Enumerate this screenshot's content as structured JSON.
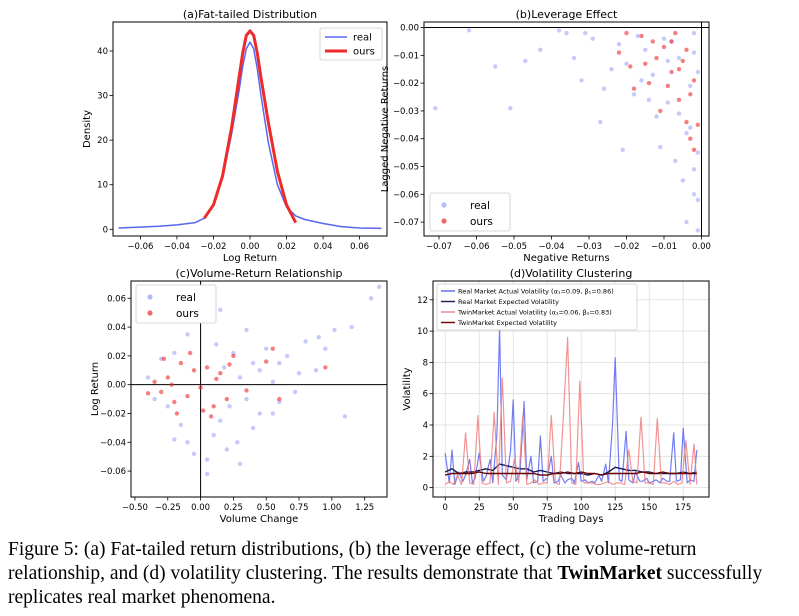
{
  "colors": {
    "real": "#5a66f0",
    "ours": "#ee2a2a",
    "real_dark": "#1a1a55",
    "ours_dark": "#6b0000",
    "ours_light": "#f08080"
  },
  "caption": {
    "prefix": "Figure 5: (a) Fat-tailed return distributions, (b) the leverage effect, (c) the volume-return relationship, and (d) volatility clustering. The results demonstrate that ",
    "bold": "TwinMarket",
    "suffix": " successfully replicates real market phenomena."
  },
  "chart_data": [
    {
      "id": "a",
      "type": "line",
      "title": "(a)Fat-tailed Distribution",
      "xlabel": "Log Return",
      "ylabel": "Density",
      "xlim": [
        -0.075,
        0.075
      ],
      "ylim": [
        -1.5,
        46.5
      ],
      "xticks": [
        -0.06,
        -0.04,
        -0.02,
        0.0,
        0.02,
        0.04,
        0.06
      ],
      "xticklabels": [
        "−0.06",
        "−0.04",
        "−0.02",
        "0.00",
        "0.02",
        "0.04",
        "0.06"
      ],
      "yticks": [
        0,
        10,
        20,
        30,
        40
      ],
      "yticklabels": [
        "0",
        "10",
        "20",
        "30",
        "40"
      ],
      "legend_position": "top-right",
      "series": [
        {
          "name": "real",
          "x": [
            -0.072,
            -0.06,
            -0.05,
            -0.04,
            -0.03,
            -0.025,
            -0.02,
            -0.015,
            -0.01,
            -0.006,
            -0.004,
            -0.002,
            0.0,
            0.002,
            0.004,
            0.006,
            0.01,
            0.015,
            0.02,
            0.025,
            0.03,
            0.04,
            0.05,
            0.06,
            0.072
          ],
          "y": [
            0.3,
            0.5,
            0.7,
            1.0,
            1.5,
            2.5,
            5.5,
            11.5,
            21.5,
            31,
            36.5,
            40.5,
            42,
            40.5,
            36,
            30,
            19.5,
            10,
            5,
            3,
            2.2,
            1.3,
            0.6,
            0.3,
            0.2
          ]
        },
        {
          "name": "ours",
          "x": [
            -0.025,
            -0.02,
            -0.015,
            -0.01,
            -0.006,
            -0.004,
            -0.002,
            0.0,
            0.002,
            0.004,
            0.006,
            0.01,
            0.015,
            0.02,
            0.025
          ],
          "y": [
            2.5,
            5.5,
            12,
            23,
            34,
            39.5,
            43.5,
            44.5,
            43.5,
            39.5,
            34,
            24,
            13,
            5.5,
            1.5
          ]
        }
      ]
    },
    {
      "id": "b",
      "type": "scatter",
      "title": "(b)Leverage Effect",
      "xlabel": "Negative Returns",
      "ylabel": "Lagged Negative Returns",
      "xlim": [
        -0.074,
        0.002
      ],
      "ylim": [
        -0.075,
        0.002
      ],
      "xticks": [
        -0.07,
        -0.06,
        -0.05,
        -0.04,
        -0.03,
        -0.02,
        -0.01,
        0.0
      ],
      "xticklabels": [
        "−0.07",
        "−0.06",
        "−0.05",
        "−0.04",
        "−0.03",
        "−0.02",
        "−0.01",
        "0.00"
      ],
      "yticks": [
        0.0,
        -0.01,
        -0.02,
        -0.03,
        -0.04,
        -0.05,
        -0.06,
        -0.07
      ],
      "yticklabels": [
        "0.00",
        "−0.01",
        "−0.02",
        "−0.03",
        "−0.04",
        "−0.05",
        "−0.06",
        "−0.07"
      ],
      "legend_position": "bottom-left",
      "series": [
        {
          "name": "real",
          "x": [
            -0.071,
            -0.062,
            -0.055,
            -0.051,
            -0.047,
            -0.043,
            -0.038,
            -0.034,
            -0.032,
            -0.029,
            -0.026,
            -0.022,
            -0.02,
            -0.018,
            -0.015,
            -0.013,
            -0.011,
            -0.009,
            -0.008,
            -0.006,
            -0.005,
            -0.004,
            -0.003,
            -0.002,
            -0.001,
            -0.001,
            -0.012,
            -0.007,
            -0.003,
            -0.002,
            -0.017,
            -0.024,
            -0.031,
            -0.002,
            -0.004,
            -0.001,
            -0.036,
            -0.027,
            -0.014,
            -0.01,
            -0.006,
            -0.016,
            -0.021,
            -0.009,
            -0.002,
            -0.001
          ],
          "y": [
            -0.029,
            -0.001,
            -0.014,
            -0.029,
            -0.012,
            -0.008,
            -0.001,
            -0.011,
            -0.019,
            -0.004,
            -0.022,
            -0.006,
            -0.013,
            -0.024,
            -0.008,
            -0.017,
            -0.043,
            -0.027,
            -0.005,
            -0.011,
            -0.055,
            -0.07,
            -0.036,
            -0.002,
            -0.016,
            -0.073,
            -0.032,
            -0.048,
            -0.021,
            -0.009,
            -0.003,
            -0.015,
            -0.002,
            -0.06,
            -0.038,
            -0.045,
            -0.002,
            -0.034,
            -0.026,
            -0.004,
            -0.031,
            -0.019,
            -0.044,
            -0.012,
            -0.051,
            -0.062
          ]
        },
        {
          "name": "ours",
          "x": [
            -0.022,
            -0.019,
            -0.016,
            -0.014,
            -0.012,
            -0.01,
            -0.008,
            -0.007,
            -0.006,
            -0.005,
            -0.004,
            -0.003,
            -0.002,
            -0.001,
            -0.009,
            -0.013,
            -0.018,
            -0.011,
            -0.004,
            -0.003,
            -0.002,
            -0.006,
            -0.015,
            -0.02,
            -0.008
          ],
          "y": [
            -0.009,
            -0.014,
            -0.003,
            -0.02,
            -0.011,
            -0.007,
            -0.016,
            -0.002,
            -0.026,
            -0.012,
            -0.034,
            -0.04,
            -0.019,
            -0.035,
            -0.021,
            -0.005,
            -0.022,
            -0.03,
            -0.008,
            -0.024,
            -0.044,
            -0.015,
            -0.013,
            -0.002,
            -0.005
          ]
        }
      ]
    },
    {
      "id": "c",
      "type": "scatter",
      "title": "(c)Volume-Return Relationship",
      "xlabel": "Volume Change",
      "ylabel": "Log Return",
      "xlim": [
        -0.53,
        1.42
      ],
      "ylim": [
        -0.078,
        0.072
      ],
      "xticks": [
        -0.5,
        -0.25,
        0.0,
        0.25,
        0.5,
        0.75,
        1.0,
        1.25
      ],
      "xticklabels": [
        "−0.50",
        "−0.25",
        "0.00",
        "0.25",
        "0.50",
        "0.75",
        "1.00",
        "1.25"
      ],
      "yticks": [
        0.06,
        0.04,
        0.02,
        0.0,
        -0.02,
        -0.04,
        -0.06
      ],
      "yticklabels": [
        "0.06",
        "0.04",
        "0.02",
        "0.00",
        "−0.02",
        "−0.04",
        "−0.06"
      ],
      "legend_position": "top-left",
      "series": [
        {
          "name": "real",
          "x": [
            1.36,
            1.3,
            1.15,
            1.02,
            0.95,
            0.88,
            0.8,
            0.72,
            0.66,
            0.6,
            0.55,
            0.5,
            0.45,
            0.4,
            0.35,
            0.3,
            0.28,
            0.25,
            0.22,
            0.18,
            0.15,
            0.12,
            0.1,
            0.08,
            0.05,
            -0.05,
            -0.1,
            -0.15,
            -0.2,
            -0.25,
            -0.3,
            -0.35,
            -0.4,
            -0.05,
            0.2,
            0.4,
            0.6,
            0.9,
            1.1,
            0.75,
            0.35,
            0.05,
            -0.2,
            0.15,
            0.3,
            -0.1,
            0.55,
            0.45
          ],
          "y": [
            0.068,
            0.06,
            0.04,
            0.038,
            0.025,
            0.01,
            0.03,
            -0.005,
            0.02,
            0.015,
            -0.02,
            0.025,
            0.01,
            -0.03,
            -0.01,
            0.005,
            -0.04,
            0.022,
            -0.015,
            0.012,
            -0.025,
            0.028,
            -0.035,
            0.045,
            -0.062,
            -0.048,
            0.035,
            -0.028,
            0.022,
            -0.015,
            0.018,
            -0.01,
            0.005,
            0.05,
            -0.045,
            0.015,
            -0.012,
            0.033,
            -0.022,
            0.008,
            0.038,
            -0.052,
            -0.038,
            0.052,
            -0.055,
            -0.04,
            0.002,
            -0.02
          ]
        },
        {
          "name": "ours",
          "x": [
            -0.3,
            -0.25,
            -0.2,
            -0.15,
            -0.1,
            -0.05,
            0.0,
            0.05,
            0.1,
            0.15,
            0.2,
            0.25,
            -0.35,
            -0.4,
            -0.28,
            -0.18,
            -0.08,
            0.02,
            0.12,
            0.22,
            0.35,
            0.5,
            0.55,
            0.95,
            0.6,
            -0.22,
            0.08
          ],
          "y": [
            -0.005,
            0.005,
            -0.012,
            0.015,
            -0.008,
            0.01,
            -0.002,
            0.012,
            -0.015,
            0.008,
            -0.01,
            0.02,
            0.002,
            -0.006,
            0.018,
            -0.02,
            0.022,
            -0.018,
            0.004,
            0.014,
            -0.004,
            0.016,
            0.025,
            0.012,
            -0.01,
            0.0,
            -0.022
          ]
        }
      ]
    },
    {
      "id": "d",
      "type": "line",
      "title": "(d)Volatility Clustering",
      "xlabel": "Trading Days",
      "ylabel": "Volatility",
      "xlim": [
        -9,
        194
      ],
      "ylim": [
        -0.6,
        13.2
      ],
      "xticks": [
        0,
        25,
        50,
        75,
        100,
        125,
        150,
        175
      ],
      "xticklabels": [
        "0",
        "25",
        "50",
        "75",
        "100",
        "125",
        "150",
        "175"
      ],
      "yticks": [
        0,
        2,
        4,
        6,
        8,
        10,
        12
      ],
      "yticklabels": [
        "0",
        "2",
        "4",
        "6",
        "8",
        "10",
        "12"
      ],
      "legend_position": "top-left",
      "series": [
        {
          "name": "Real Market Actual Volatility (α₁=0.09, β₁=0.86)",
          "x": [
            0,
            3,
            5,
            7,
            10,
            13,
            15,
            18,
            20,
            22,
            25,
            28,
            30,
            33,
            35,
            38,
            40,
            42,
            45,
            48,
            50,
            52,
            55,
            58,
            60,
            63,
            65,
            68,
            70,
            72,
            75,
            78,
            80,
            83,
            85,
            88,
            90,
            93,
            95,
            98,
            100,
            103,
            105,
            108,
            110,
            113,
            115,
            118,
            120,
            123,
            125,
            128,
            130,
            133,
            135,
            138,
            140,
            143,
            145,
            148,
            150,
            153,
            155,
            158,
            160,
            163,
            165,
            168,
            170,
            173,
            175,
            178,
            180,
            183,
            185
          ],
          "y": [
            2.2,
            0.3,
            2.4,
            0.2,
            1.0,
            0.4,
            0.8,
            1.8,
            0.3,
            0.6,
            2.2,
            0.4,
            0.7,
            1.8,
            0.3,
            3.4,
            10.3,
            0.8,
            0.5,
            2.3,
            5.6,
            0.4,
            0.9,
            5.5,
            0.5,
            2.0,
            0.3,
            0.4,
            3.3,
            0.4,
            0.6,
            2.0,
            0.3,
            0.4,
            0.8,
            0.3,
            0.5,
            0.6,
            0.3,
            1.6,
            0.4,
            0.5,
            0.3,
            0.4,
            0.3,
            0.8,
            0.4,
            1.5,
            0.3,
            4.0,
            8.3,
            0.5,
            0.4,
            3.6,
            0.5,
            0.3,
            1.0,
            0.4,
            0.4,
            0.6,
            0.3,
            0.4,
            0.5,
            0.3,
            0.6,
            0.4,
            0.4,
            3.5,
            0.4,
            0.5,
            3.8,
            0.3,
            0.5,
            0.4,
            2.4
          ]
        },
        {
          "name": "Real Market Expected Volatility",
          "x": [
            0,
            5,
            10,
            15,
            20,
            25,
            30,
            35,
            40,
            45,
            50,
            55,
            60,
            65,
            70,
            75,
            80,
            85,
            90,
            95,
            100,
            105,
            110,
            115,
            120,
            125,
            130,
            135,
            140,
            145,
            150,
            155,
            160,
            165,
            170,
            175,
            180,
            185
          ],
          "y": [
            1.0,
            1.2,
            0.9,
            1.0,
            1.0,
            1.1,
            1.2,
            1.1,
            1.5,
            1.4,
            1.3,
            1.2,
            1.2,
            1.0,
            1.1,
            1.0,
            0.9,
            1.0,
            0.9,
            0.9,
            0.9,
            0.8,
            0.9,
            0.8,
            1.0,
            1.3,
            1.2,
            1.1,
            1.1,
            1.0,
            1.0,
            0.9,
            0.9,
            0.9,
            0.9,
            1.0,
            0.9,
            1.0
          ]
        },
        {
          "name": "TwinMarket Actual Volatility (α₁=0.06, β₁=0.83)",
          "x": [
            0,
            3,
            6,
            9,
            12,
            15,
            18,
            21,
            24,
            27,
            30,
            33,
            36,
            39,
            42,
            45,
            48,
            51,
            54,
            57,
            60,
            63,
            66,
            69,
            72,
            75,
            78,
            81,
            84,
            87,
            90,
            93,
            96,
            99,
            102,
            105,
            108,
            111,
            114,
            117,
            120,
            123,
            126,
            129,
            132,
            135,
            138,
            141,
            144,
            147,
            150,
            153,
            156,
            159,
            162,
            165,
            168,
            171,
            174,
            177,
            180,
            183,
            185
          ],
          "y": [
            0.2,
            0.4,
            0.2,
            0.8,
            0.2,
            3.5,
            0.3,
            0.2,
            4.6,
            0.3,
            0.2,
            0.3,
            4.8,
            0.2,
            7.0,
            0.3,
            0.4,
            1.8,
            0.3,
            4.6,
            0.2,
            0.3,
            0.5,
            0.2,
            0.3,
            0.3,
            4.6,
            0.3,
            0.2,
            4.7,
            9.6,
            0.3,
            0.2,
            6.8,
            0.3,
            0.3,
            0.3,
            0.2,
            0.2,
            0.3,
            0.4,
            0.2,
            0.3,
            0.3,
            0.2,
            2.4,
            0.4,
            0.3,
            4.5,
            0.3,
            0.3,
            0.2,
            4.4,
            0.3,
            0.3,
            0.2,
            0.4,
            0.2,
            0.3,
            3.0,
            0.2,
            2.8,
            0.2
          ]
        },
        {
          "name": "TwinMarket Expected Volatility",
          "x": [
            0,
            5,
            10,
            15,
            20,
            25,
            30,
            35,
            40,
            45,
            50,
            55,
            60,
            65,
            70,
            75,
            80,
            85,
            90,
            95,
            100,
            105,
            110,
            115,
            120,
            125,
            130,
            135,
            140,
            145,
            150,
            155,
            160,
            165,
            170,
            175,
            180,
            185
          ],
          "y": [
            0.8,
            0.9,
            0.9,
            0.9,
            0.9,
            1.0,
            0.9,
            0.9,
            0.9,
            0.9,
            0.9,
            0.9,
            0.9,
            0.9,
            0.8,
            0.8,
            0.9,
            0.9,
            1.0,
            0.9,
            1.0,
            0.9,
            0.9,
            0.8,
            0.9,
            0.9,
            0.9,
            0.9,
            0.9,
            1.0,
            0.9,
            0.9,
            1.0,
            0.9,
            0.9,
            0.9,
            0.9,
            0.9
          ]
        }
      ]
    }
  ]
}
